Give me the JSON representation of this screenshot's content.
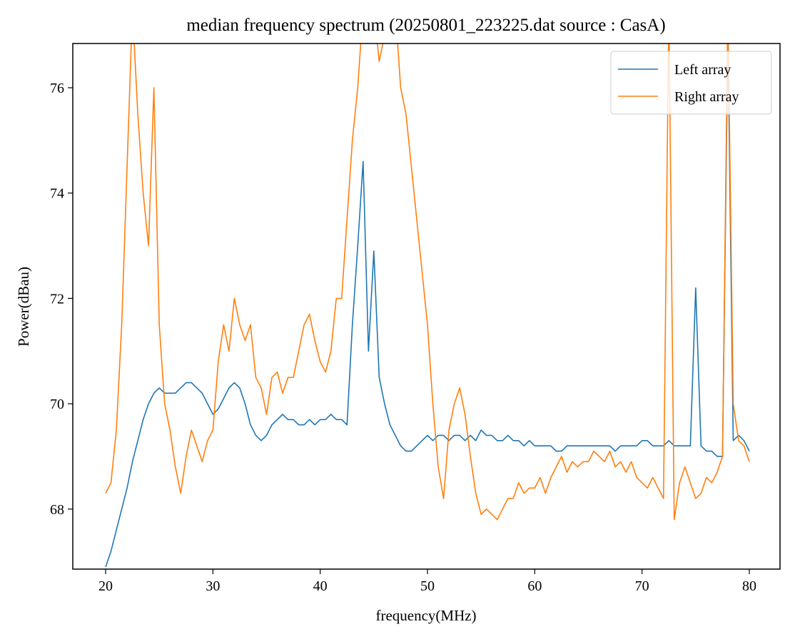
{
  "chart_data": {
    "type": "line",
    "title": "median frequency spectrum (20250801_223225.dat source : CasA)",
    "x_label": "frequency(MHz)",
    "y_label": "Power(dBau)",
    "x": [
      20,
      20.5,
      21,
      21.5,
      22,
      22.5,
      23,
      23.5,
      24,
      24.5,
      25,
      25.5,
      26,
      26.5,
      27,
      27.5,
      28,
      28.5,
      29,
      29.5,
      30,
      30.5,
      31,
      31.5,
      32,
      32.5,
      33,
      33.5,
      34,
      34.5,
      35,
      35.5,
      36,
      36.5,
      37,
      37.5,
      38,
      38.5,
      39,
      39.5,
      40,
      40.5,
      41,
      41.5,
      42,
      42.5,
      43,
      43.5,
      44,
      44.5,
      45,
      45.5,
      46,
      46.5,
      47,
      47.5,
      48,
      48.5,
      49,
      49.5,
      50,
      50.5,
      51,
      51.5,
      52,
      52.5,
      53,
      53.5,
      54,
      54.5,
      55,
      55.5,
      56,
      56.5,
      57,
      57.5,
      58,
      58.5,
      59,
      59.5,
      60,
      60.5,
      61,
      61.5,
      62,
      62.5,
      63,
      63.5,
      64,
      64.5,
      65,
      65.5,
      66,
      66.5,
      67,
      67.5,
      68,
      68.5,
      69,
      69.5,
      70,
      70.5,
      71,
      71.5,
      72,
      72.5,
      73,
      73.5,
      74,
      74.5,
      75,
      75.5,
      76,
      76.5,
      77,
      77.5,
      78,
      78.5,
      79,
      79.5,
      80
    ],
    "series": [
      {
        "name": "Left array",
        "color": "#1f77b4",
        "values": [
          66.9,
          67.2,
          67.6,
          68.0,
          68.4,
          68.9,
          69.3,
          69.7,
          70.0,
          70.2,
          70.3,
          70.2,
          70.2,
          70.2,
          70.3,
          70.4,
          70.4,
          70.3,
          70.2,
          70.0,
          69.8,
          69.9,
          70.1,
          70.3,
          70.4,
          70.3,
          70.0,
          69.6,
          69.4,
          69.3,
          69.4,
          69.6,
          69.7,
          69.8,
          69.7,
          69.7,
          69.6,
          69.6,
          69.7,
          69.6,
          69.7,
          69.7,
          69.8,
          69.7,
          69.7,
          69.6,
          71.5,
          73.0,
          74.6,
          71.0,
          72.9,
          70.5,
          70.0,
          69.6,
          69.4,
          69.2,
          69.1,
          69.1,
          69.2,
          69.3,
          69.4,
          69.3,
          69.4,
          69.4,
          69.3,
          69.4,
          69.4,
          69.3,
          69.4,
          69.3,
          69.5,
          69.4,
          69.4,
          69.3,
          69.3,
          69.4,
          69.3,
          69.3,
          69.2,
          69.3,
          69.2,
          69.2,
          69.2,
          69.2,
          69.1,
          69.1,
          69.2,
          69.2,
          69.2,
          69.2,
          69.2,
          69.2,
          69.2,
          69.2,
          69.2,
          69.1,
          69.2,
          69.2,
          69.2,
          69.2,
          69.3,
          69.3,
          69.2,
          69.2,
          69.2,
          69.3,
          69.2,
          69.2,
          69.2,
          69.2,
          72.2,
          69.2,
          69.1,
          69.1,
          69.0,
          69.0,
          77.0,
          69.3,
          69.4,
          69.3,
          69.1
        ]
      },
      {
        "name": "Right array",
        "color": "#ff7f0e",
        "values": [
          68.3,
          68.5,
          69.5,
          71.5,
          74.5,
          77.5,
          75.5,
          74.0,
          73.0,
          76.0,
          71.5,
          70.0,
          69.5,
          68.8,
          68.3,
          69.0,
          69.5,
          69.2,
          68.9,
          69.3,
          69.5,
          70.8,
          71.5,
          71.0,
          72.0,
          71.5,
          71.2,
          71.5,
          70.5,
          70.3,
          69.8,
          70.5,
          70.6,
          70.2,
          70.5,
          70.5,
          71.0,
          71.5,
          71.7,
          71.2,
          70.8,
          70.6,
          71.0,
          72.0,
          72.0,
          73.5,
          75.0,
          76.0,
          77.5,
          77.0,
          77.5,
          76.5,
          77.0,
          77.5,
          77.5,
          76.0,
          75.5,
          74.5,
          73.5,
          72.5,
          71.5,
          70.0,
          68.8,
          68.2,
          69.5,
          70.0,
          70.3,
          69.8,
          69.0,
          68.3,
          67.9,
          68.0,
          67.9,
          67.8,
          68.0,
          68.2,
          68.2,
          68.5,
          68.3,
          68.4,
          68.4,
          68.6,
          68.3,
          68.6,
          68.8,
          69.0,
          68.7,
          68.9,
          68.8,
          68.9,
          68.9,
          69.1,
          69.0,
          68.9,
          69.1,
          68.8,
          68.9,
          68.7,
          68.9,
          68.6,
          68.5,
          68.4,
          68.6,
          68.4,
          68.2,
          77.5,
          67.8,
          68.5,
          68.8,
          68.5,
          68.2,
          68.3,
          68.6,
          68.5,
          68.7,
          69.0,
          77.5,
          70.0,
          69.3,
          69.2,
          68.9
        ]
      }
    ],
    "xlim": [
      16.94,
      82.86
    ],
    "ylim": [
      66.86,
      76.84
    ],
    "xticks": [
      20,
      30,
      40,
      50,
      60,
      70,
      80
    ],
    "yticks": [
      68,
      70,
      72,
      74,
      76
    ],
    "grid": false,
    "legend": "upper right"
  }
}
